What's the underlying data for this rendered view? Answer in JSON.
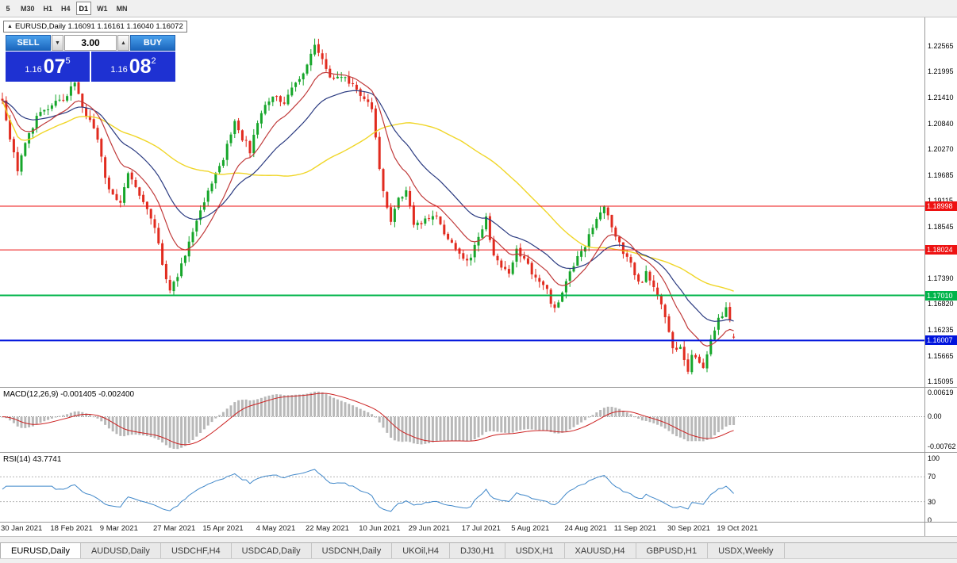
{
  "toolbar": {
    "timeframes": [
      {
        "label": "5",
        "active": false
      },
      {
        "label": "M30",
        "active": false
      },
      {
        "label": "H1",
        "active": false
      },
      {
        "label": "H4",
        "active": false
      },
      {
        "label": "D1",
        "active": true
      },
      {
        "label": "W1",
        "active": false
      },
      {
        "label": "MN",
        "active": false
      }
    ]
  },
  "chart_header": {
    "ohlc_line": "EURUSD,Daily 1.16091 1.16161 1.16040 1.16072"
  },
  "trade_panel": {
    "sell_label": "SELL",
    "buy_label": "BUY",
    "lot_value": "3.00",
    "sell_price": {
      "big": "1.16",
      "mid": "07",
      "sup": "5"
    },
    "buy_price": {
      "big": "1.16",
      "mid": "08",
      "sup": "2"
    }
  },
  "indicators": {
    "macd_label": "MACD(12,26,9) -0.001405 -0.002400",
    "rsi_label": "RSI(14) 43.7741"
  },
  "chart_data": {
    "type": "candlestick",
    "symbol": "EURUSD",
    "timeframe": "Daily",
    "current_ohlc": {
      "open": 1.16091,
      "high": 1.16161,
      "low": 1.1604,
      "close": 1.16072
    },
    "bars": 193,
    "close_anchors": [
      [
        0,
        1.2135
      ],
      [
        2,
        1.2055
      ],
      [
        4,
        1.1982
      ],
      [
        6,
        1.2048
      ],
      [
        9,
        1.2095
      ],
      [
        13,
        1.2122
      ],
      [
        16,
        1.2142
      ],
      [
        19,
        1.2168
      ],
      [
        21,
        1.2119
      ],
      [
        24,
        1.2077
      ],
      [
        26,
        1.2005
      ],
      [
        28,
        1.1932
      ],
      [
        31,
        1.1915
      ],
      [
        33,
        1.1968
      ],
      [
        36,
        1.1925
      ],
      [
        38,
        1.189
      ],
      [
        40,
        1.1848
      ],
      [
        42,
        1.177
      ],
      [
        44,
        1.1717
      ],
      [
        46,
        1.1748
      ],
      [
        48,
        1.1788
      ],
      [
        51,
        1.1872
      ],
      [
        54,
        1.1938
      ],
      [
        57,
        1.1982
      ],
      [
        60,
        1.2058
      ],
      [
        61,
        1.2092
      ],
      [
        63,
        1.2052
      ],
      [
        65,
        1.2024
      ],
      [
        68,
        1.2108
      ],
      [
        71,
        1.215
      ],
      [
        74,
        1.2132
      ],
      [
        77,
        1.2175
      ],
      [
        80,
        1.2212
      ],
      [
        82,
        1.2254
      ],
      [
        84,
        1.2222
      ],
      [
        86,
        1.2192
      ],
      [
        89,
        1.2185
      ],
      [
        92,
        1.2168
      ],
      [
        95,
        1.2145
      ],
      [
        97,
        1.2108
      ],
      [
        99,
        1.1988
      ],
      [
        100,
        1.1935
      ],
      [
        102,
        1.1865
      ],
      [
        104,
        1.1912
      ],
      [
        106,
        1.1938
      ],
      [
        108,
        1.1862
      ],
      [
        111,
        1.187
      ],
      [
        114,
        1.1882
      ],
      [
        116,
        1.1834
      ],
      [
        119,
        1.1808
      ],
      [
        122,
        1.1772
      ],
      [
        125,
        1.1824
      ],
      [
        127,
        1.187
      ],
      [
        129,
        1.1794
      ],
      [
        131,
        1.1763
      ],
      [
        133,
        1.1742
      ],
      [
        135,
        1.18
      ],
      [
        137,
        1.1782
      ],
      [
        139,
        1.1755
      ],
      [
        141,
        1.1732
      ],
      [
        143,
        1.1708
      ],
      [
        145,
        1.1672
      ],
      [
        147,
        1.1705
      ],
      [
        149,
        1.1755
      ],
      [
        152,
        1.18
      ],
      [
        155,
        1.1848
      ],
      [
        157,
        1.1882
      ],
      [
        158,
        1.1898
      ],
      [
        160,
        1.1845
      ],
      [
        162,
        1.1815
      ],
      [
        165,
        1.1772
      ],
      [
        167,
        1.1728
      ],
      [
        169,
        1.1748
      ],
      [
        171,
        1.1722
      ],
      [
        172,
        1.17
      ],
      [
        174,
        1.166
      ],
      [
        176,
        1.1582
      ],
      [
        178,
        1.1592
      ],
      [
        180,
        1.1535
      ],
      [
        181,
        1.1572
      ],
      [
        183,
        1.1552
      ],
      [
        184,
        1.1532
      ],
      [
        186,
        1.1602
      ],
      [
        188,
        1.1648
      ],
      [
        190,
        1.1668
      ],
      [
        191,
        1.164
      ],
      [
        192,
        1.16072
      ]
    ],
    "price_axis_labels": [
      "1.22565",
      "1.21995",
      "1.21410",
      "1.20840",
      "1.20270",
      "1.19685",
      "1.19115",
      "1.18545",
      "1.17975",
      "1.17390",
      "1.16820",
      "1.16235",
      "1.15665",
      "1.15095"
    ],
    "hlines": [
      {
        "price": 1.18998,
        "label": "1.18998",
        "color": "#ee1111",
        "width": 1
      },
      {
        "price": 1.18024,
        "label": "1.18024",
        "color": "#ee1111",
        "width": 1
      },
      {
        "price": 1.1701,
        "label": "1.17010",
        "color": "#00b44a",
        "width": 2
      },
      {
        "price": 1.16007,
        "label": "1.16007",
        "color": "#0014dd",
        "width": 2
      }
    ],
    "moving_averages": [
      {
        "period": 55,
        "method": "sma",
        "color": "#f0d628"
      },
      {
        "period": 26,
        "method": "ema",
        "color": "#2a3a80"
      },
      {
        "period": 12,
        "method": "ema",
        "color": "#c03a3a"
      }
    ],
    "date_labels": [
      [
        "30 Jan 2021",
        0
      ],
      [
        "18 Feb 2021",
        13
      ],
      [
        "9 Mar 2021",
        26
      ],
      [
        "27 Mar 2021",
        40
      ],
      [
        "15 Apr 2021",
        53
      ],
      [
        "4 May 2021",
        67
      ],
      [
        "22 May 2021",
        80
      ],
      [
        "10 Jun 2021",
        94
      ],
      [
        "29 Jun 2021",
        107
      ],
      [
        "17 Jul 2021",
        121
      ],
      [
        "5 Aug 2021",
        134
      ],
      [
        "24 Aug 2021",
        148
      ],
      [
        "11 Sep 2021",
        161
      ],
      [
        "30 Sep 2021",
        175
      ],
      [
        "19 Oct 2021",
        188
      ]
    ],
    "macd": {
      "params": "12,26,9",
      "value": -0.001405,
      "signal": -0.0024,
      "axis": [
        {
          "v": 0.00619,
          "label": "0.00619"
        },
        {
          "v": 0,
          "label": "0.00"
        },
        {
          "v": -0.00762,
          "label": "-0.00762"
        }
      ],
      "hist_color": "#b8b8b8",
      "signal_color": "#cc2222"
    },
    "rsi": {
      "period": 14,
      "value": 43.7741,
      "axis": [
        {
          "v": 100,
          "label": "100"
        },
        {
          "v": 70,
          "label": "70"
        },
        {
          "v": 30,
          "label": "30"
        },
        {
          "v": 0,
          "label": "0"
        }
      ],
      "levels": [
        70,
        30
      ],
      "line_color": "#3f87c9"
    },
    "candle_up_color": "#16a62a",
    "candle_down_color": "#e12b1f"
  },
  "tabs": [
    {
      "label": "EURUSD,Daily",
      "active": true
    },
    {
      "label": "AUDUSD,Daily",
      "active": false
    },
    {
      "label": "USDCHF,H4",
      "active": false
    },
    {
      "label": "USDCAD,Daily",
      "active": false
    },
    {
      "label": "USDCNH,Daily",
      "active": false
    },
    {
      "label": "UKOil,H4",
      "active": false
    },
    {
      "label": "DJ30,H1",
      "active": false
    },
    {
      "label": "USDX,H1",
      "active": false
    },
    {
      "label": "XAUUSD,H4",
      "active": false
    },
    {
      "label": "GBPUSD,H1",
      "active": false
    },
    {
      "label": "USDX,Weekly",
      "active": false
    }
  ]
}
